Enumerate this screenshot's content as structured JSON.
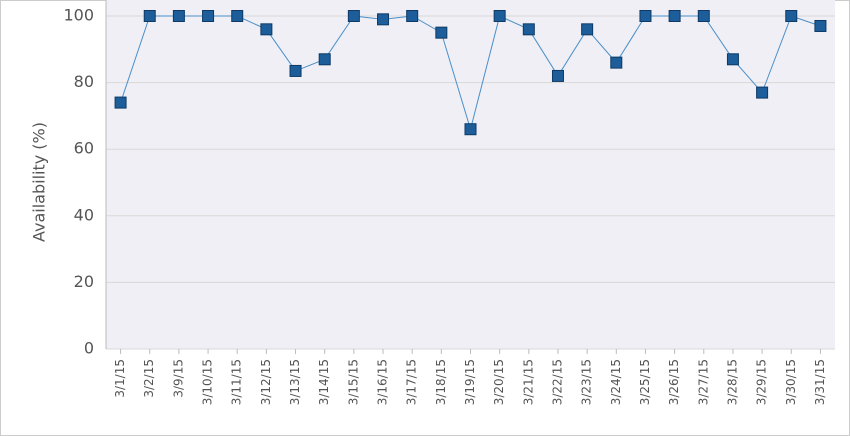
{
  "chart_data": {
    "type": "line",
    "y_label": "Availability (%)",
    "categories": [
      "3/1/15",
      "3/2/15",
      "3/9/15",
      "3/10/15",
      "3/11/15",
      "3/12/15",
      "3/13/15",
      "3/14/15",
      "3/15/15",
      "3/16/15",
      "3/17/15",
      "3/18/15",
      "3/19/15",
      "3/20/15",
      "3/21/15",
      "3/22/15",
      "3/23/15",
      "3/24/15",
      "3/25/15",
      "3/26/15",
      "3/27/15",
      "3/28/15",
      "3/29/15",
      "3/30/15",
      "3/31/15"
    ],
    "series": [
      {
        "name": "Availability",
        "color": "#1d5d99",
        "line_color": "#4a8fc9",
        "values": [
          74,
          100,
          100,
          100,
          100,
          96,
          83.5,
          87,
          100,
          99,
          100,
          95,
          66,
          100,
          96,
          82,
          96,
          86,
          100,
          100,
          100,
          87,
          77,
          100,
          97
        ]
      }
    ],
    "ylim": [
      0,
      100
    ],
    "yticks": [
      0,
      20,
      40,
      60,
      80,
      100
    ],
    "grid": true
  }
}
